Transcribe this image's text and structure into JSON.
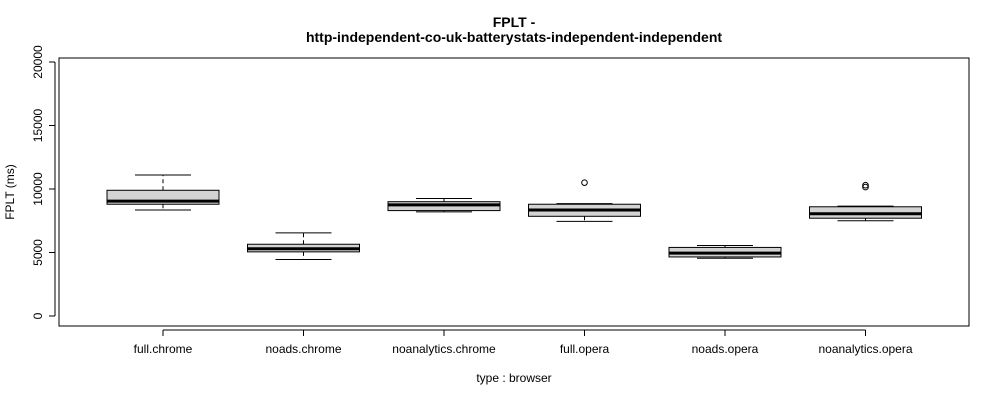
{
  "chart_data": {
    "type": "boxplot",
    "title": "FPLT -",
    "subtitle": "http-independent-co-uk-batterystats-independent-independent",
    "xlabel": "type : browser",
    "ylabel": "FPLT (ms)",
    "ylim": [
      0,
      20000
    ],
    "yticks": [
      "0",
      "5000",
      "10000",
      "15000",
      "20000"
    ],
    "categories": [
      "full.chrome",
      "noads.chrome",
      "noanalytics.chrome",
      "full.opera",
      "noads.opera",
      "noanalytics.opera"
    ],
    "boxes": [
      {
        "category": "full.chrome",
        "min": 8350,
        "q1": 8800,
        "median": 9050,
        "q3": 9900,
        "max": 11100,
        "outliers": []
      },
      {
        "category": "noads.chrome",
        "min": 4450,
        "q1": 5050,
        "median": 5300,
        "q3": 5650,
        "max": 6550,
        "outliers": []
      },
      {
        "category": "noanalytics.chrome",
        "min": 8200,
        "q1": 8300,
        "median": 8750,
        "q3": 9000,
        "max": 9250,
        "outliers": []
      },
      {
        "category": "full.opera",
        "min": 7450,
        "q1": 7850,
        "median": 8350,
        "q3": 8800,
        "max": 8850,
        "outliers": [
          10500
        ]
      },
      {
        "category": "noads.opera",
        "min": 4550,
        "q1": 4650,
        "median": 4950,
        "q3": 5400,
        "max": 5550,
        "outliers": []
      },
      {
        "category": "noanalytics.opera",
        "min": 7500,
        "q1": 7700,
        "median": 8050,
        "q3": 8600,
        "max": 8650,
        "outliers": [
          10150,
          10300
        ]
      }
    ],
    "box_fill": "#d3d3d3",
    "grid": false
  }
}
